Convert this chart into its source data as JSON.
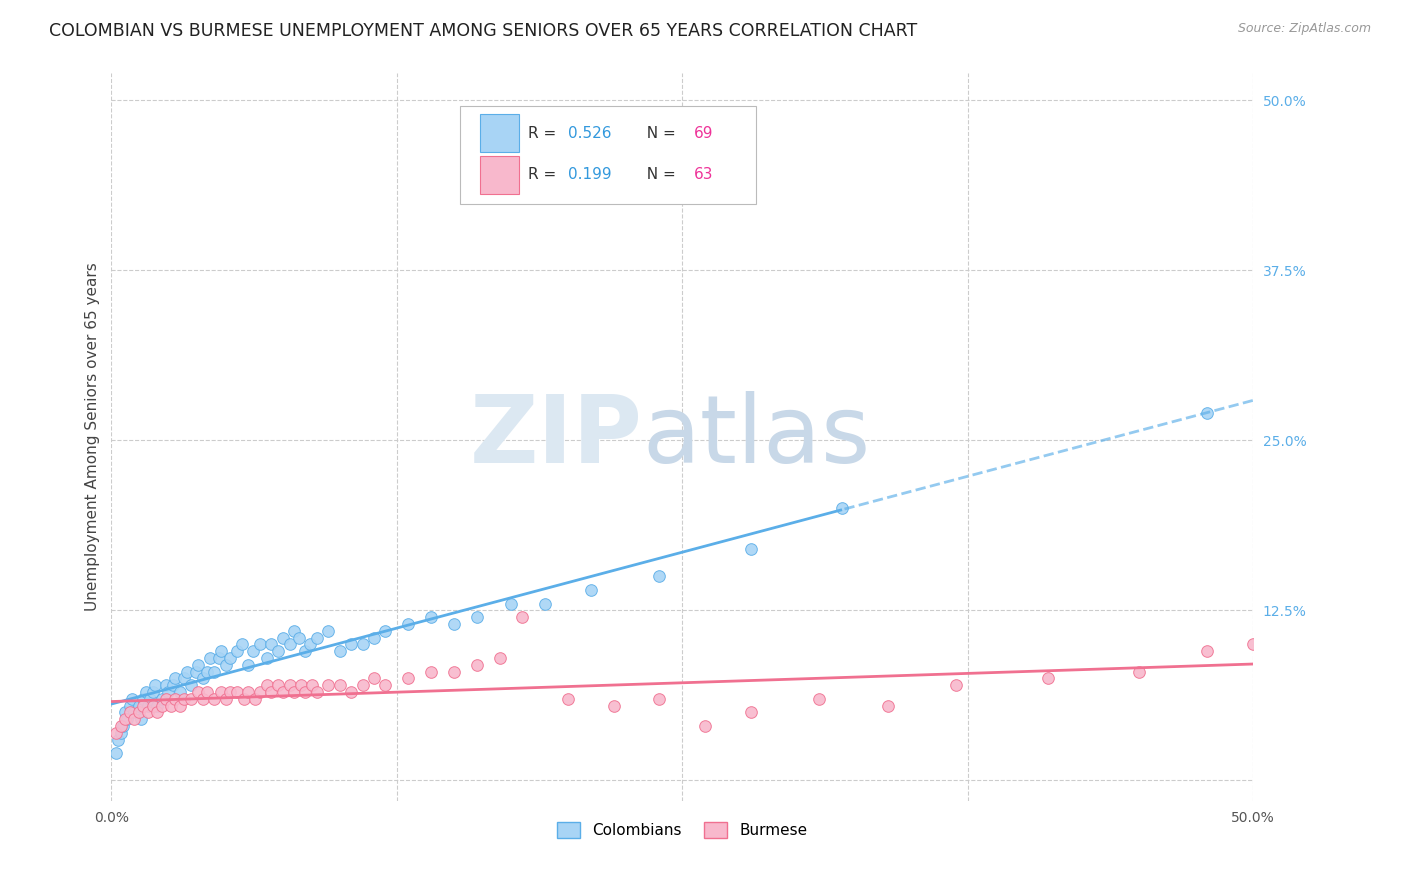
{
  "title": "COLOMBIAN VS BURMESE UNEMPLOYMENT AMONG SENIORS OVER 65 YEARS CORRELATION CHART",
  "source": "Source: ZipAtlas.com",
  "ylabel": "Unemployment Among Seniors over 65 years",
  "xlim": [
    0.0,
    0.5
  ],
  "ylim": [
    -0.015,
    0.52
  ],
  "ytick_right_labels": [
    "50.0%",
    "37.5%",
    "25.0%",
    "12.5%",
    ""
  ],
  "ytick_right_values": [
    0.5,
    0.375,
    0.25,
    0.125,
    0.0
  ],
  "colombian_color": "#A8D4F5",
  "burmese_color": "#F8B8CC",
  "colombian_line_color": "#5BAEE8",
  "burmese_line_color": "#F07090",
  "legend_R_color": "#3399DD",
  "legend_N_color": "#EE3399",
  "R_colombian": 0.526,
  "N_colombian": 69,
  "R_burmese": 0.199,
  "N_burmese": 63,
  "background_color": "#ffffff",
  "grid_color": "#cccccc",
  "colombian_x": [
    0.002,
    0.003,
    0.004,
    0.005,
    0.006,
    0.007,
    0.008,
    0.009,
    0.01,
    0.012,
    0.013,
    0.014,
    0.015,
    0.016,
    0.017,
    0.018,
    0.019,
    0.02,
    0.022,
    0.024,
    0.025,
    0.027,
    0.028,
    0.03,
    0.032,
    0.033,
    0.035,
    0.037,
    0.038,
    0.04,
    0.042,
    0.043,
    0.045,
    0.047,
    0.048,
    0.05,
    0.052,
    0.055,
    0.057,
    0.06,
    0.062,
    0.065,
    0.068,
    0.07,
    0.073,
    0.075,
    0.078,
    0.08,
    0.082,
    0.085,
    0.087,
    0.09,
    0.095,
    0.1,
    0.105,
    0.11,
    0.115,
    0.12,
    0.13,
    0.14,
    0.15,
    0.16,
    0.175,
    0.19,
    0.21,
    0.24,
    0.28,
    0.32,
    0.48
  ],
  "colombian_y": [
    0.02,
    0.03,
    0.035,
    0.04,
    0.05,
    0.045,
    0.055,
    0.06,
    0.05,
    0.055,
    0.045,
    0.06,
    0.065,
    0.055,
    0.06,
    0.065,
    0.07,
    0.055,
    0.06,
    0.07,
    0.065,
    0.07,
    0.075,
    0.065,
    0.075,
    0.08,
    0.07,
    0.08,
    0.085,
    0.075,
    0.08,
    0.09,
    0.08,
    0.09,
    0.095,
    0.085,
    0.09,
    0.095,
    0.1,
    0.085,
    0.095,
    0.1,
    0.09,
    0.1,
    0.095,
    0.105,
    0.1,
    0.11,
    0.105,
    0.095,
    0.1,
    0.105,
    0.11,
    0.095,
    0.1,
    0.1,
    0.105,
    0.11,
    0.115,
    0.12,
    0.115,
    0.12,
    0.13,
    0.13,
    0.14,
    0.15,
    0.17,
    0.2,
    0.27
  ],
  "burmese_x": [
    0.002,
    0.004,
    0.006,
    0.008,
    0.01,
    0.012,
    0.014,
    0.016,
    0.018,
    0.02,
    0.022,
    0.024,
    0.026,
    0.028,
    0.03,
    0.032,
    0.035,
    0.038,
    0.04,
    0.042,
    0.045,
    0.048,
    0.05,
    0.052,
    0.055,
    0.058,
    0.06,
    0.063,
    0.065,
    0.068,
    0.07,
    0.073,
    0.075,
    0.078,
    0.08,
    0.083,
    0.085,
    0.088,
    0.09,
    0.095,
    0.1,
    0.105,
    0.11,
    0.115,
    0.12,
    0.13,
    0.14,
    0.15,
    0.16,
    0.17,
    0.18,
    0.2,
    0.22,
    0.24,
    0.26,
    0.28,
    0.31,
    0.34,
    0.37,
    0.41,
    0.45,
    0.48,
    0.5
  ],
  "burmese_y": [
    0.035,
    0.04,
    0.045,
    0.05,
    0.045,
    0.05,
    0.055,
    0.05,
    0.055,
    0.05,
    0.055,
    0.06,
    0.055,
    0.06,
    0.055,
    0.06,
    0.06,
    0.065,
    0.06,
    0.065,
    0.06,
    0.065,
    0.06,
    0.065,
    0.065,
    0.06,
    0.065,
    0.06,
    0.065,
    0.07,
    0.065,
    0.07,
    0.065,
    0.07,
    0.065,
    0.07,
    0.065,
    0.07,
    0.065,
    0.07,
    0.07,
    0.065,
    0.07,
    0.075,
    0.07,
    0.075,
    0.08,
    0.08,
    0.085,
    0.09,
    0.12,
    0.06,
    0.055,
    0.06,
    0.04,
    0.05,
    0.06,
    0.055,
    0.07,
    0.075,
    0.08,
    0.095,
    0.1
  ]
}
